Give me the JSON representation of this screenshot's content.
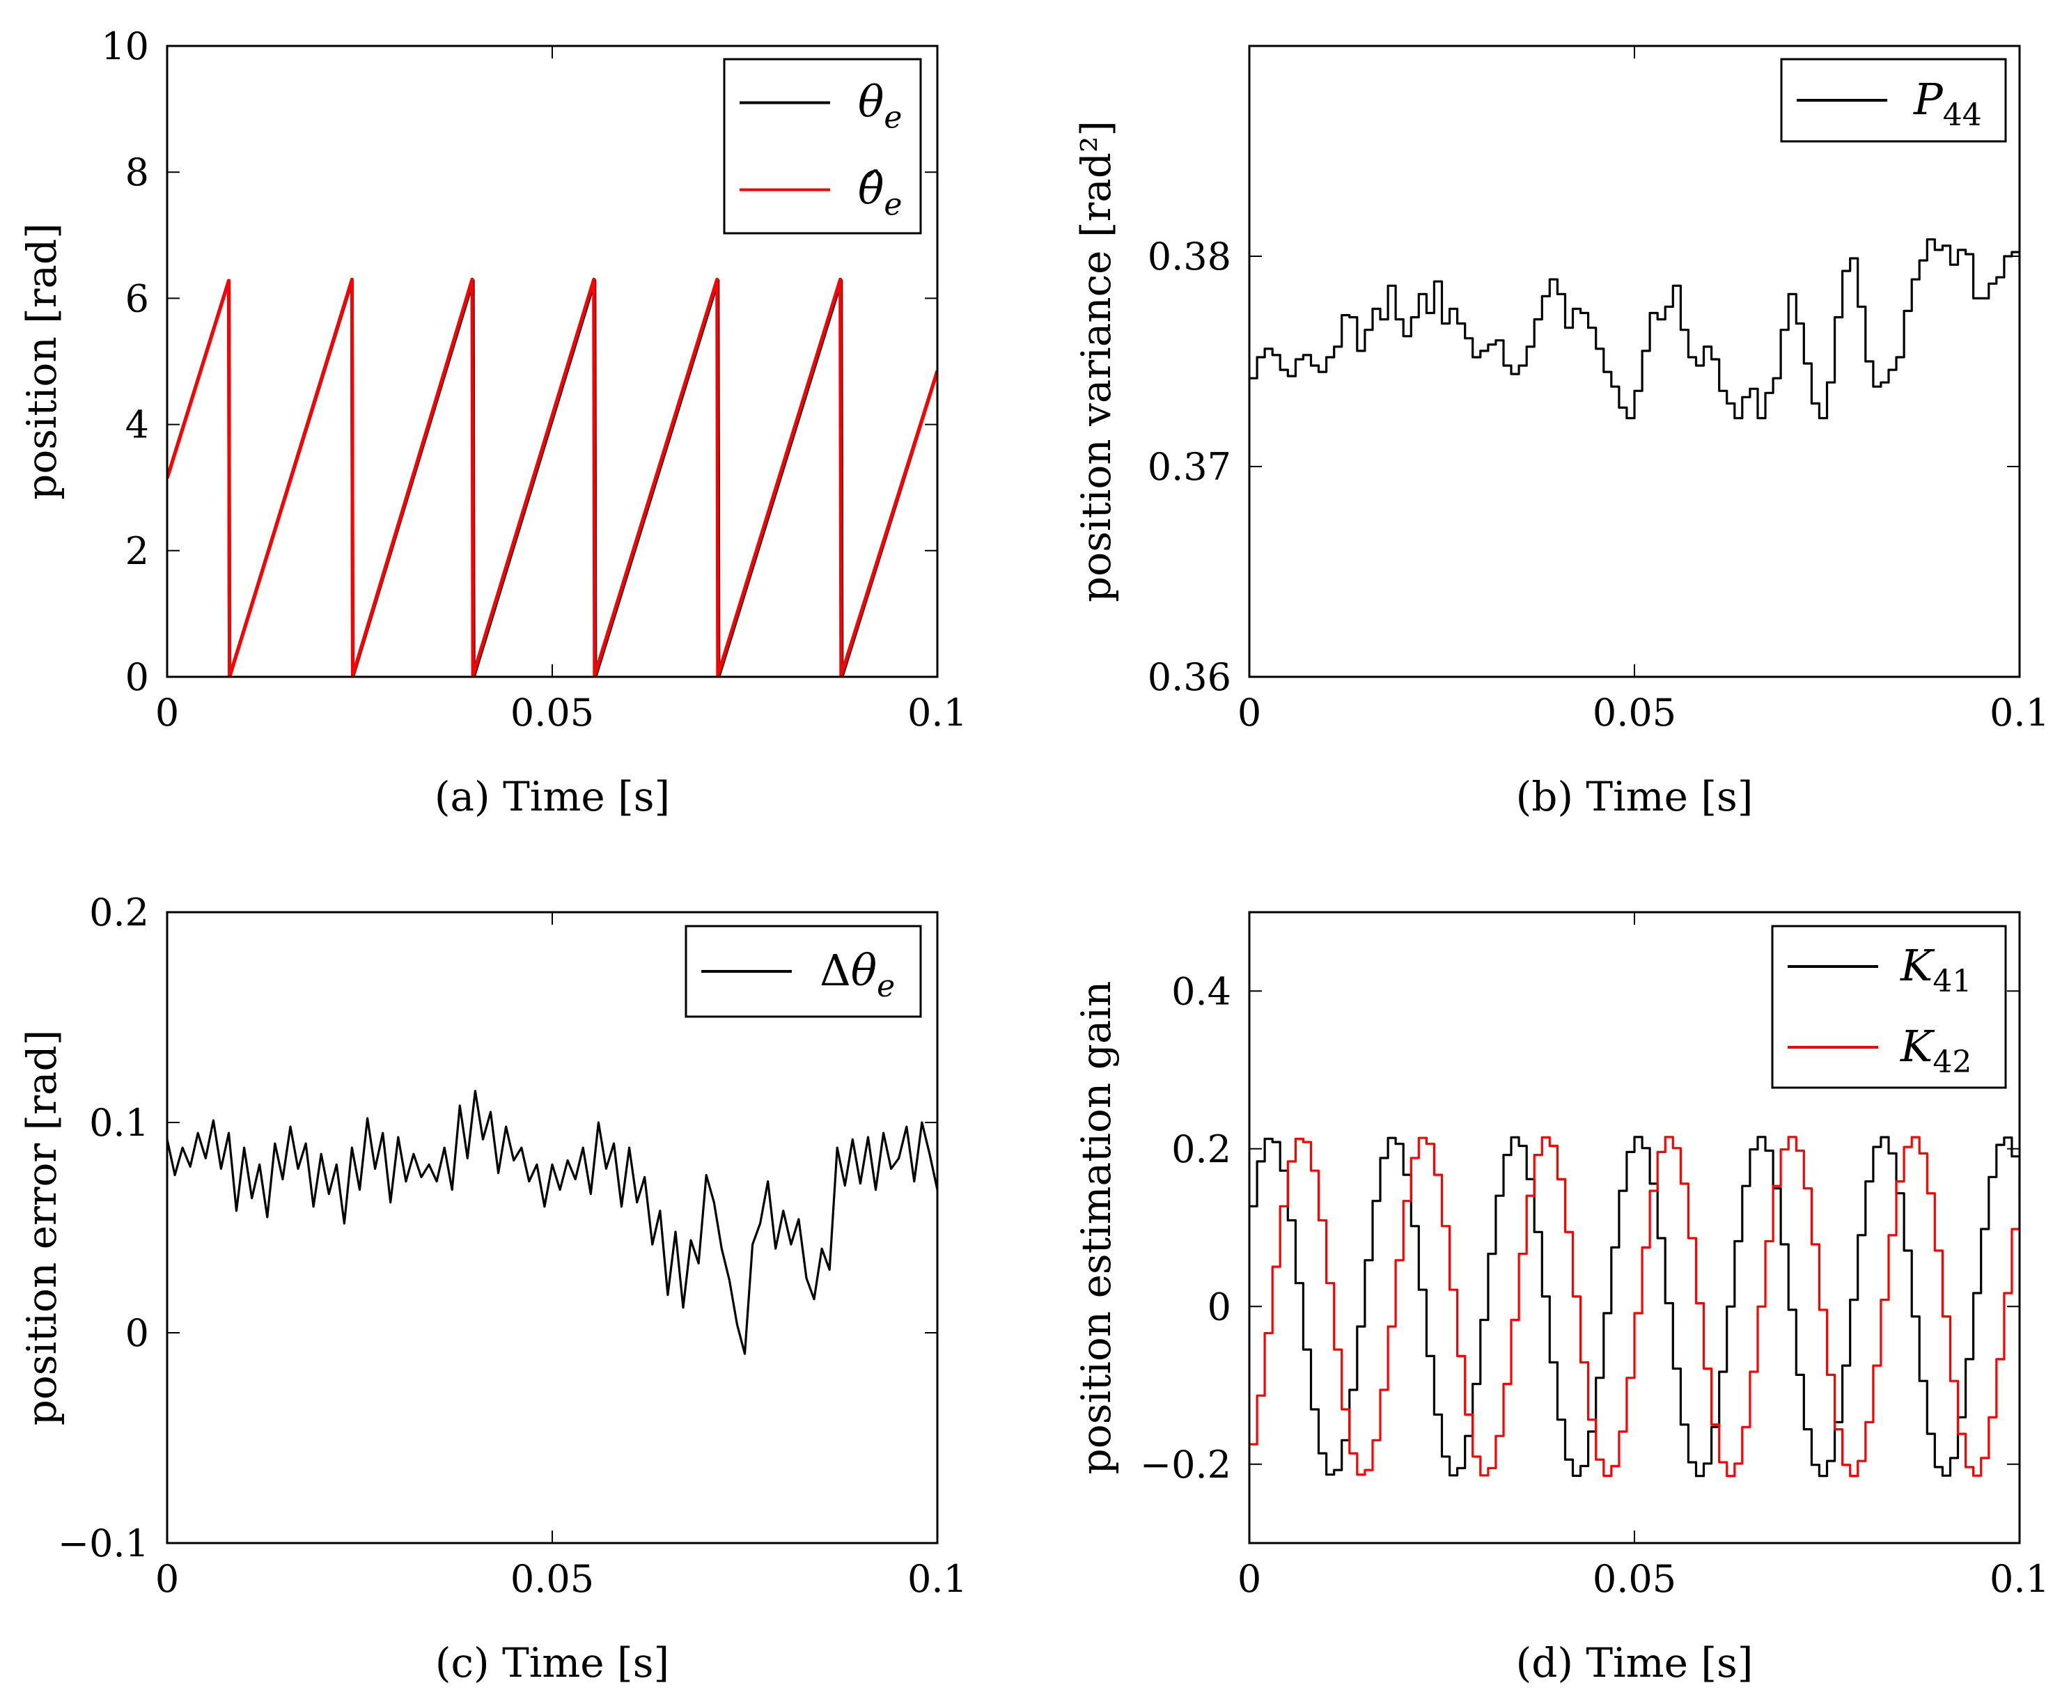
{
  "chart_data": [
    {
      "id": "a",
      "type": "line",
      "xlabel": "(a) Time [s]",
      "ylabel": "position [rad]",
      "xlim": [
        0,
        0.1
      ],
      "ylim": [
        0,
        10
      ],
      "xticks": [
        0,
        0.05,
        0.1
      ],
      "xtick_labels": [
        "0",
        "0.05",
        "0.1"
      ],
      "yticks": [
        0,
        2,
        4,
        6,
        8,
        10
      ],
      "ytick_labels": [
        "0",
        "2",
        "4",
        "6",
        "8",
        "10"
      ],
      "legend_position": "top-right",
      "series": [
        {
          "name": "θe",
          "color": "#000000",
          "x": [
            0,
            0.008,
            0.0081,
            0.024,
            0.0241,
            0.0397,
            0.0398,
            0.0555,
            0.0556,
            0.0715,
            0.0716,
            0.0875,
            0.0876,
            0.1
          ],
          "y": [
            3.15,
            6.28,
            0,
            6.28,
            0,
            6.28,
            0,
            6.28,
            0,
            6.28,
            0,
            6.28,
            0,
            4.85
          ]
        },
        {
          "name": "θ̂e",
          "color": "#ff0000",
          "x": [
            0,
            0.008,
            0.0081,
            0.024,
            0.0241,
            0.0396,
            0.0397,
            0.0554,
            0.0555,
            0.0714,
            0.0715,
            0.0874,
            0.0875,
            0.1
          ],
          "y": [
            3.15,
            6.28,
            0,
            6.3,
            0.02,
            6.3,
            0.02,
            6.3,
            0.02,
            6.3,
            0.02,
            6.3,
            0.02,
            4.85
          ]
        }
      ]
    },
    {
      "id": "b",
      "type": "line",
      "xlabel": "(b) Time [s]",
      "ylabel": "position variance [rad²]",
      "xlim": [
        0,
        0.1
      ],
      "ylim": [
        0.36,
        0.39
      ],
      "xticks": [
        0,
        0.05,
        0.1
      ],
      "xtick_labels": [
        "0",
        "0.05",
        "0.1"
      ],
      "yticks": [
        0.36,
        0.37,
        0.38
      ],
      "ytick_labels": [
        "0.36",
        "0.37",
        "0.38"
      ],
      "legend_position": "top-right",
      "step": true,
      "series": [
        {
          "name": "P44",
          "color": "#000000",
          "x": [
            0,
            0.001,
            0.002,
            0.003,
            0.004,
            0.005,
            0.006,
            0.007,
            0.008,
            0.009,
            0.01,
            0.011,
            0.012,
            0.013,
            0.014,
            0.015,
            0.016,
            0.017,
            0.018,
            0.019,
            0.02,
            0.021,
            0.022,
            0.023,
            0.024,
            0.025,
            0.026,
            0.027,
            0.028,
            0.029,
            0.03,
            0.031,
            0.032,
            0.033,
            0.034,
            0.035,
            0.036,
            0.037,
            0.038,
            0.039,
            0.04,
            0.041,
            0.042,
            0.043,
            0.044,
            0.045,
            0.046,
            0.047,
            0.048,
            0.049,
            0.05,
            0.051,
            0.052,
            0.053,
            0.054,
            0.055,
            0.056,
            0.057,
            0.058,
            0.059,
            0.06,
            0.061,
            0.062,
            0.063,
            0.064,
            0.065,
            0.066,
            0.067,
            0.068,
            0.069,
            0.07,
            0.071,
            0.072,
            0.073,
            0.074,
            0.075,
            0.076,
            0.077,
            0.078,
            0.079,
            0.08,
            0.081,
            0.082,
            0.083,
            0.084,
            0.085,
            0.086,
            0.087,
            0.088,
            0.089,
            0.09,
            0.091,
            0.092,
            0.093,
            0.094,
            0.095,
            0.096,
            0.097,
            0.098,
            0.099,
            0.1
          ],
          "y": [
            0.3742,
            0.3752,
            0.3756,
            0.3753,
            0.3746,
            0.3743,
            0.3751,
            0.3753,
            0.3748,
            0.3745,
            0.3752,
            0.3757,
            0.3772,
            0.3771,
            0.3755,
            0.3765,
            0.3775,
            0.377,
            0.3786,
            0.377,
            0.3762,
            0.3771,
            0.3782,
            0.3773,
            0.3788,
            0.3768,
            0.3775,
            0.3768,
            0.3761,
            0.3752,
            0.3755,
            0.3758,
            0.376,
            0.3748,
            0.3744,
            0.3748,
            0.3757,
            0.377,
            0.3781,
            0.3789,
            0.3782,
            0.3766,
            0.3775,
            0.3773,
            0.3766,
            0.3756,
            0.3745,
            0.3738,
            0.3728,
            0.3723,
            0.3736,
            0.3755,
            0.3773,
            0.377,
            0.3776,
            0.3786,
            0.3765,
            0.3752,
            0.3748,
            0.3757,
            0.3751,
            0.3736,
            0.373,
            0.3723,
            0.3733,
            0.3737,
            0.3723,
            0.3735,
            0.3742,
            0.3765,
            0.3782,
            0.3768,
            0.3749,
            0.373,
            0.3723,
            0.374,
            0.3771,
            0.3793,
            0.3799,
            0.3776,
            0.375,
            0.3738,
            0.374,
            0.3746,
            0.3752,
            0.3774,
            0.3789,
            0.3798,
            0.3808,
            0.3803,
            0.3805,
            0.3796,
            0.3803,
            0.3801,
            0.378,
            0.378,
            0.3787,
            0.379,
            0.38,
            0.3802,
            0.3796
          ]
        }
      ]
    },
    {
      "id": "c",
      "type": "line",
      "xlabel": "(c) Time [s]",
      "ylabel": "position error [rad]",
      "xlim": [
        0,
        0.1
      ],
      "ylim": [
        -0.1,
        0.2
      ],
      "xticks": [
        0,
        0.05,
        0.1
      ],
      "xtick_labels": [
        "0",
        "0.05",
        "0.1"
      ],
      "yticks": [
        -0.1,
        0,
        0.1,
        0.2
      ],
      "ytick_labels": [
        "−0.1",
        "0",
        "0.1",
        "0.2"
      ],
      "legend_position": "top-right",
      "series": [
        {
          "name": "Δθe",
          "color": "#000000",
          "x": [
            0,
            0.001,
            0.002,
            0.003,
            0.004,
            0.005,
            0.006,
            0.007,
            0.008,
            0.009,
            0.01,
            0.011,
            0.012,
            0.013,
            0.014,
            0.015,
            0.016,
            0.017,
            0.018,
            0.019,
            0.02,
            0.021,
            0.022,
            0.023,
            0.024,
            0.025,
            0.026,
            0.027,
            0.028,
            0.029,
            0.03,
            0.031,
            0.032,
            0.033,
            0.034,
            0.035,
            0.036,
            0.037,
            0.038,
            0.039,
            0.04,
            0.041,
            0.042,
            0.043,
            0.044,
            0.045,
            0.046,
            0.047,
            0.048,
            0.049,
            0.05,
            0.051,
            0.052,
            0.053,
            0.054,
            0.055,
            0.056,
            0.057,
            0.058,
            0.059,
            0.06,
            0.061,
            0.062,
            0.063,
            0.064,
            0.065,
            0.066,
            0.067,
            0.068,
            0.069,
            0.07,
            0.071,
            0.072,
            0.073,
            0.074,
            0.075,
            0.076,
            0.077,
            0.078,
            0.079,
            0.08,
            0.081,
            0.082,
            0.083,
            0.084,
            0.085,
            0.086,
            0.087,
            0.088,
            0.089,
            0.09,
            0.091,
            0.092,
            0.093,
            0.094,
            0.095,
            0.096,
            0.097,
            0.098,
            0.099,
            0.1
          ],
          "y": [
            0.092,
            0.075,
            0.088,
            0.079,
            0.095,
            0.083,
            0.101,
            0.078,
            0.095,
            0.058,
            0.088,
            0.064,
            0.08,
            0.055,
            0.09,
            0.073,
            0.098,
            0.078,
            0.09,
            0.06,
            0.085,
            0.066,
            0.08,
            0.052,
            0.088,
            0.068,
            0.102,
            0.078,
            0.095,
            0.062,
            0.093,
            0.072,
            0.085,
            0.074,
            0.08,
            0.072,
            0.088,
            0.068,
            0.108,
            0.083,
            0.115,
            0.092,
            0.105,
            0.076,
            0.098,
            0.082,
            0.088,
            0.072,
            0.08,
            0.06,
            0.08,
            0.068,
            0.082,
            0.073,
            0.088,
            0.066,
            0.1,
            0.078,
            0.09,
            0.06,
            0.088,
            0.062,
            0.074,
            0.042,
            0.058,
            0.018,
            0.048,
            0.012,
            0.044,
            0.033,
            0.075,
            0.062,
            0.04,
            0.025,
            0.004,
            -0.01,
            0.042,
            0.052,
            0.072,
            0.04,
            0.058,
            0.042,
            0.054,
            0.026,
            0.016,
            0.04,
            0.03,
            0.088,
            0.07,
            0.092,
            0.071,
            0.093,
            0.068,
            0.095,
            0.078,
            0.083,
            0.098,
            0.072,
            0.1,
            0.085,
            0.068
          ]
        }
      ]
    },
    {
      "id": "d",
      "type": "line",
      "xlabel": "(d) Time [s]",
      "ylabel": "position estimation gain",
      "xlim": [
        0,
        0.1
      ],
      "ylim": [
        -0.3,
        0.5
      ],
      "xticks": [
        0,
        0.05,
        0.1
      ],
      "xtick_labels": [
        "0",
        "0.05",
        "0.1"
      ],
      "yticks": [
        -0.2,
        0,
        0.2,
        0.4
      ],
      "ytick_labels": [
        "−0.2",
        "0",
        "0.2",
        "0.4"
      ],
      "legend_position": "top-right",
      "step": true,
      "oscillation": {
        "period": 0.0159,
        "amplitude": 0.215,
        "sample_step": 0.001
      },
      "series": [
        {
          "name": "K41",
          "color": "#000000",
          "phase_start": -0.0016
        },
        {
          "name": "K42",
          "color": "#ff0000",
          "phase_start": 0.0024
        }
      ]
    }
  ]
}
